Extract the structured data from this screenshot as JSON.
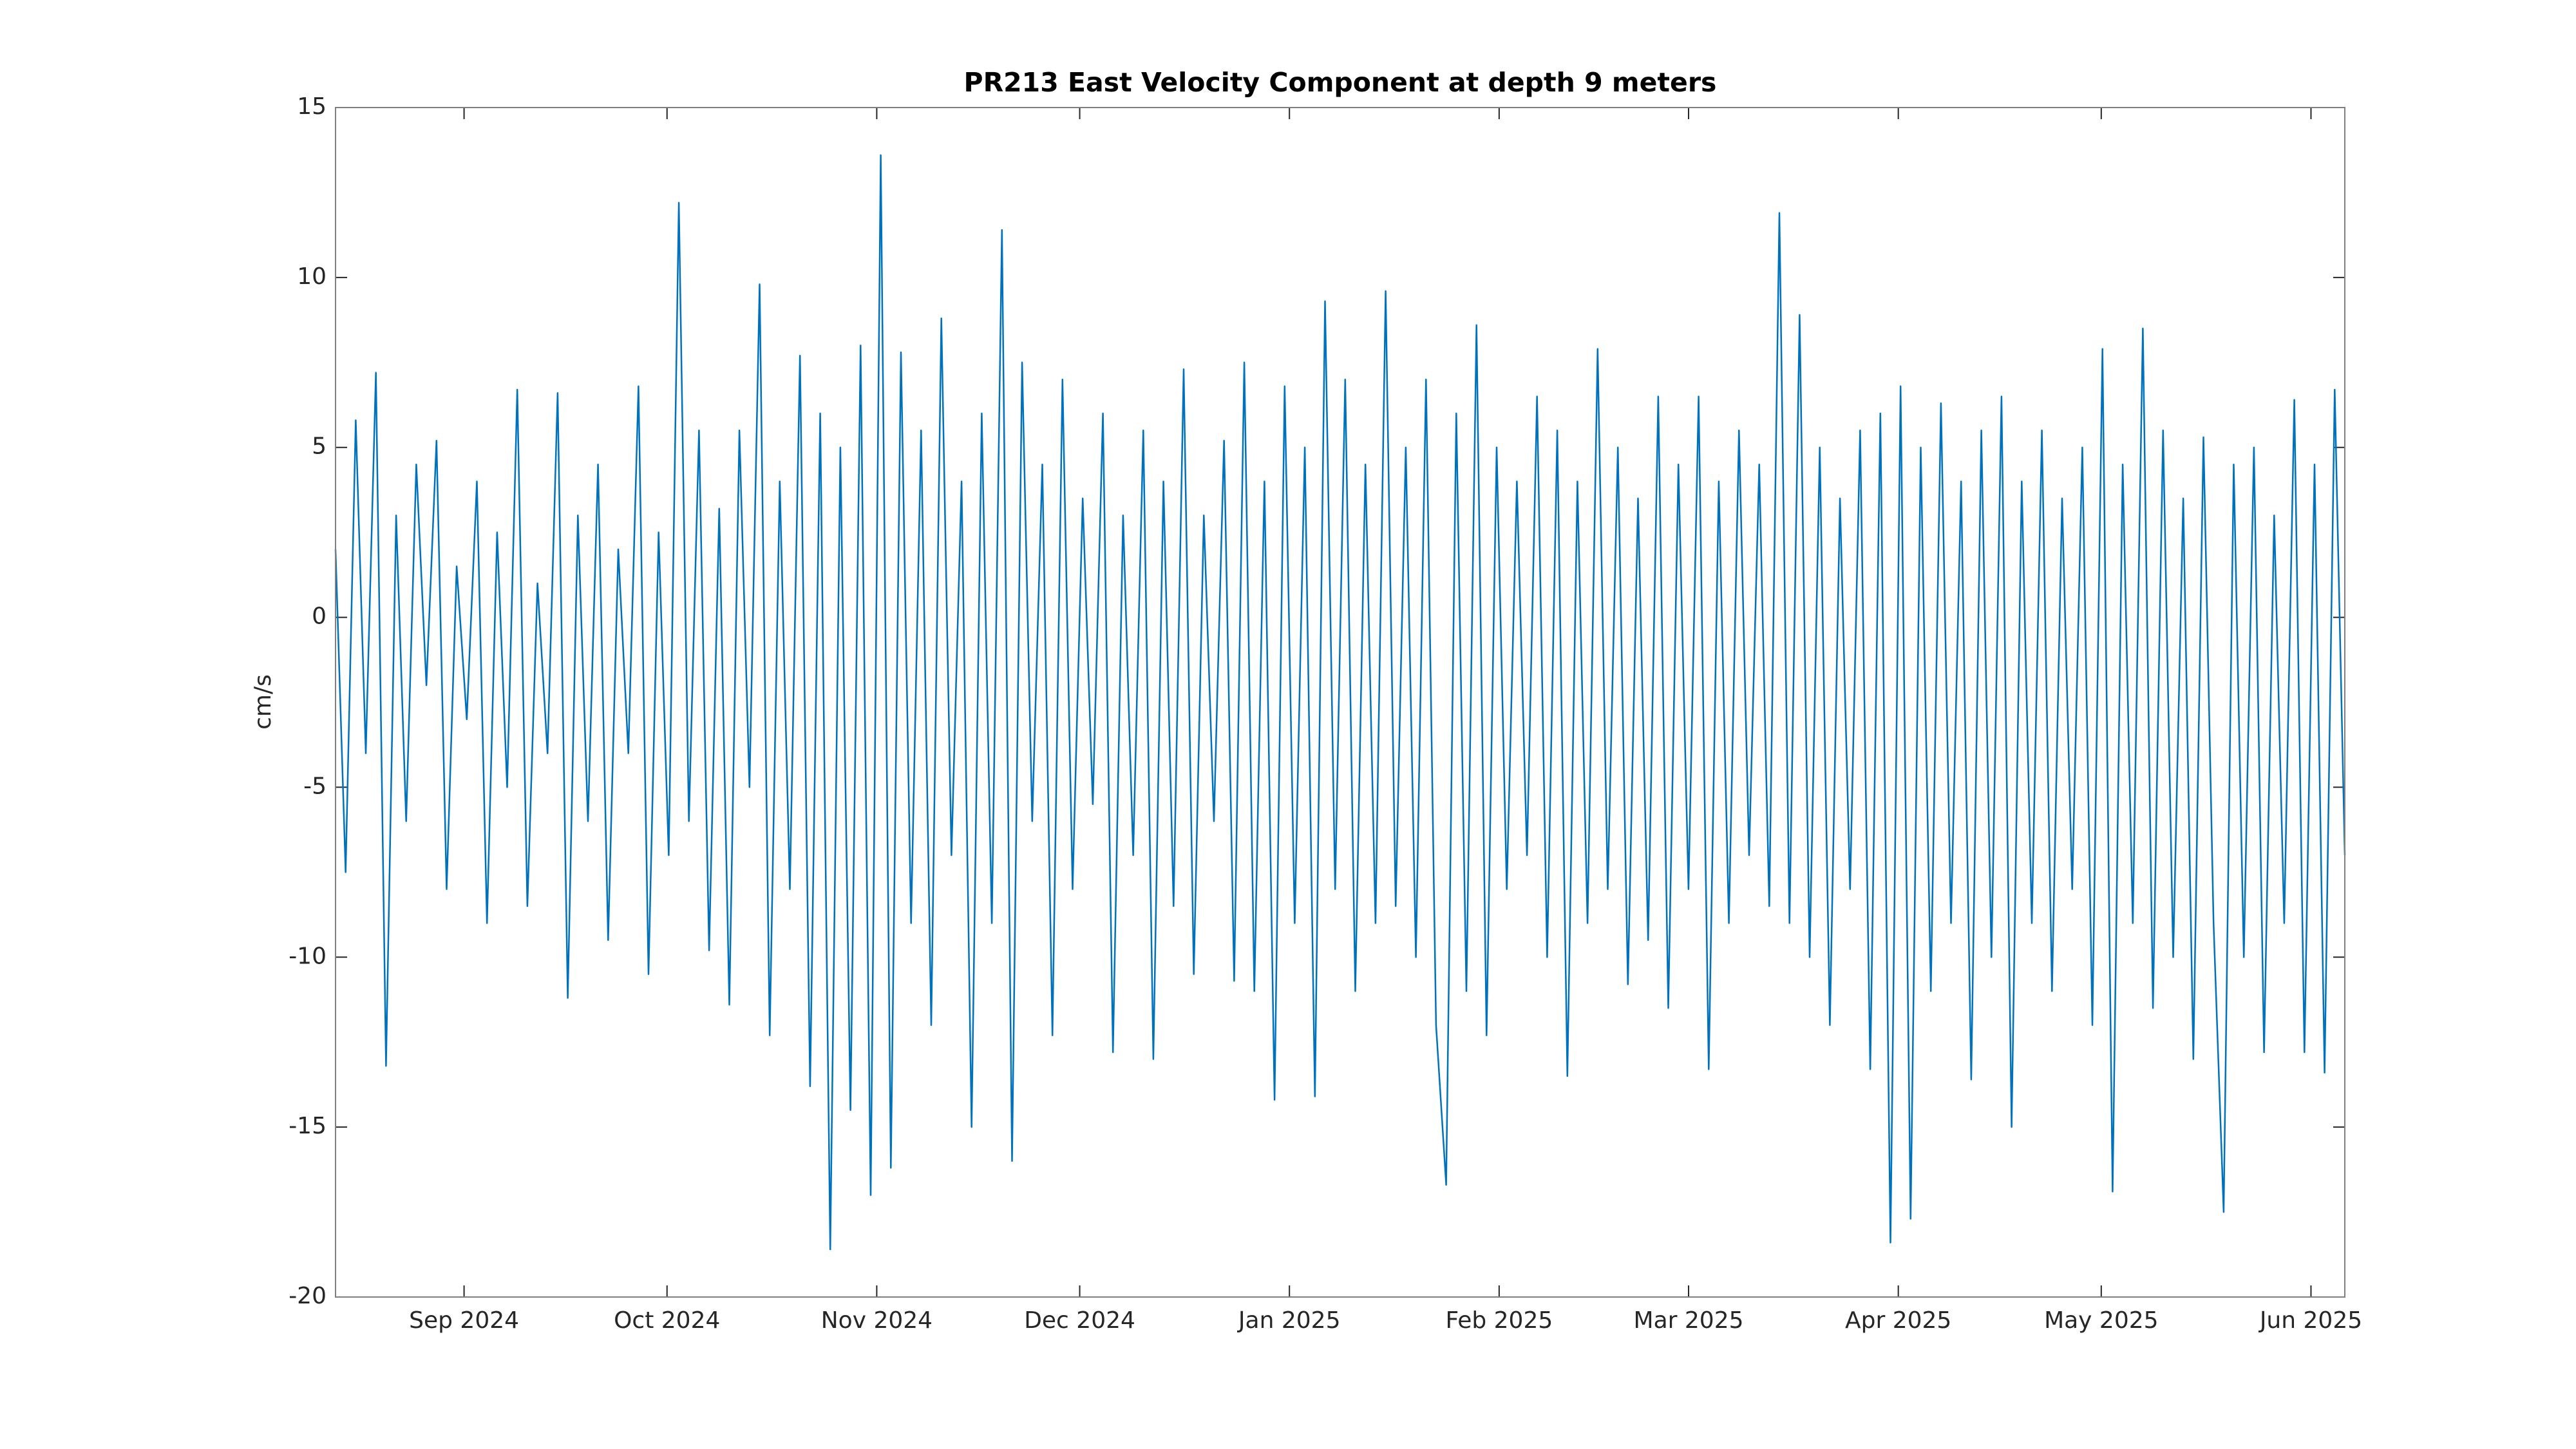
{
  "chart_data": {
    "type": "line",
    "title": "PR213 East Velocity Component at depth 9 meters",
    "ylabel": "cm/s",
    "xlim": [
      "2024-08-13",
      "2025-06-06"
    ],
    "xticks": [
      {
        "value": "2024-09",
        "label": "Sep 2024"
      },
      {
        "value": "2024-10",
        "label": "Oct 2024"
      },
      {
        "value": "2024-11",
        "label": "Nov 2024"
      },
      {
        "value": "2024-12",
        "label": "Dec 2024"
      },
      {
        "value": "2025-01",
        "label": "Jan 2025"
      },
      {
        "value": "2025-02",
        "label": "Feb 2025"
      },
      {
        "value": "2025-03",
        "label": "Mar 2025"
      },
      {
        "value": "2025-04",
        "label": "Apr 2025"
      },
      {
        "value": "2025-05",
        "label": "May 2025"
      },
      {
        "value": "2025-06",
        "label": "Jun 2025"
      }
    ],
    "ylim": [
      -20,
      15
    ],
    "yticks": [
      -20,
      -15,
      -10,
      -5,
      0,
      5,
      10,
      15
    ],
    "grid": false,
    "series": [
      {
        "color": "#0072bd",
        "values": [
          2,
          -7.5,
          5.8,
          -4,
          7.2,
          -13.2,
          3,
          -6,
          4.5,
          -2,
          5.2,
          -8,
          1.5,
          -3,
          4,
          -9,
          2.5,
          -5,
          6.7,
          -8.5,
          1,
          -4,
          6.6,
          -11.2,
          3,
          -6,
          4.5,
          -9.5,
          2,
          -4,
          6.8,
          -10.5,
          2.5,
          -7,
          12.2,
          -6,
          5.5,
          -9.8,
          3.2,
          -11.4,
          5.5,
          -5,
          9.8,
          -12.3,
          4,
          -8,
          7.7,
          -13.8,
          6,
          -18.6,
          5,
          -14.5,
          8,
          -17,
          13.6,
          -16.2,
          7.8,
          -9,
          5.5,
          -12,
          8.8,
          -7,
          4,
          -15,
          6,
          -9,
          11.4,
          -16,
          7.5,
          -6,
          4.5,
          -12.3,
          7,
          -8,
          3.5,
          -5.5,
          6,
          -12.8,
          3,
          -7,
          5.5,
          -13,
          4,
          -8.5,
          7.3,
          -10.5,
          3,
          -6,
          5.2,
          -10.7,
          7.5,
          -11,
          4,
          -14.2,
          6.8,
          -9,
          5,
          -14.1,
          9.3,
          -8,
          7,
          -11,
          4.5,
          -9,
          9.6,
          -8.5,
          5,
          -10,
          7,
          -12,
          -16.7,
          6,
          -11,
          8.6,
          -12.3,
          5,
          -8,
          4,
          -7,
          6.5,
          -10,
          5.5,
          -13.5,
          4,
          -9,
          7.9,
          -8,
          5,
          -10.8,
          3.5,
          -9.5,
          6.5,
          -11.5,
          4.5,
          -8,
          6.5,
          -13.3,
          4,
          -9,
          5.5,
          -7,
          4.5,
          -8.5,
          11.9,
          -9,
          8.9,
          -10,
          5,
          -12,
          3.5,
          -8,
          5.5,
          -13.3,
          6,
          -18.4,
          6.8,
          -17.7,
          5,
          -11,
          6.3,
          -9,
          4,
          -13.6,
          5.5,
          -10,
          6.5,
          -15,
          4,
          -9,
          5.5,
          -11,
          3.5,
          -8,
          5,
          -12,
          7.9,
          -16.9,
          4.5,
          -9,
          8.5,
          -11.5,
          5.5,
          -10,
          3.5,
          -13,
          5.3,
          -9,
          -17.5,
          4.5,
          -10,
          5,
          -12.8,
          3,
          -9,
          6.4,
          -12.8,
          4.5,
          -13.4,
          6.7,
          -7
        ]
      }
    ]
  }
}
